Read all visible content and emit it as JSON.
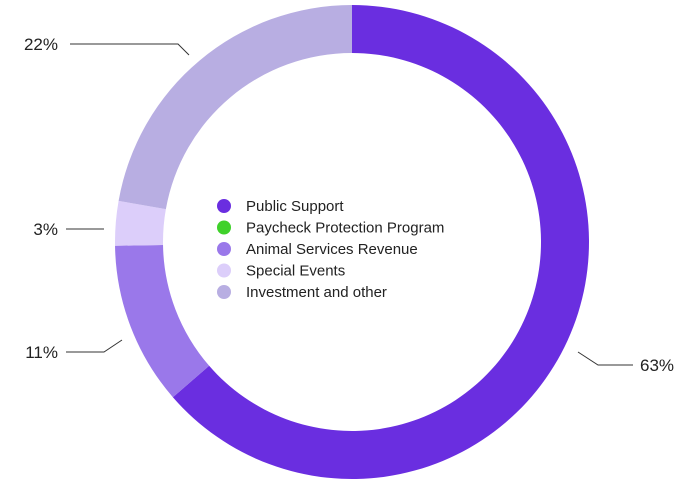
{
  "chart_data": {
    "type": "pie",
    "variant": "donut",
    "legend_position": "center",
    "categories": [
      "Public Support",
      "Paycheck Protection Program",
      "Animal Services Revenue",
      "Special Events",
      "Investment and other"
    ],
    "values": [
      63,
      0,
      11,
      3,
      22
    ],
    "value_labels": [
      "63%",
      "",
      "11%",
      "3%",
      "22%"
    ],
    "colors": [
      "#6a2ee0",
      "#3fd12a",
      "#9a78ea",
      "#dccefa",
      "#b8aee2"
    ]
  }
}
